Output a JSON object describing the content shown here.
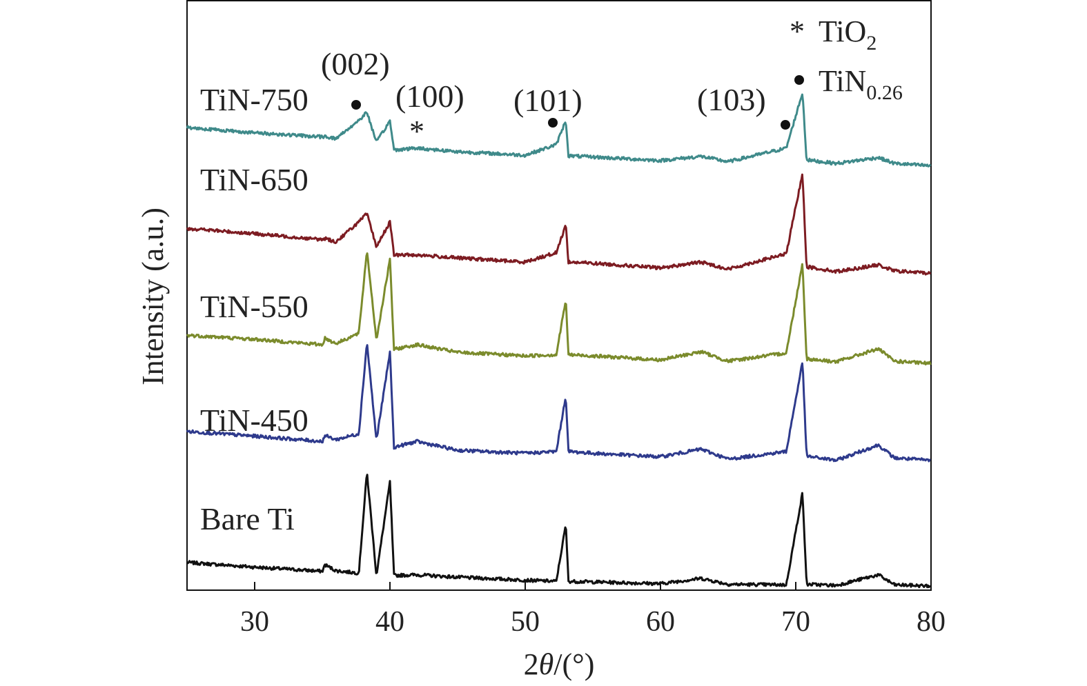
{
  "chart_data": {
    "type": "line",
    "title": "",
    "xlabel_prefix": "2",
    "xlabel_var": "θ",
    "xlabel_suffix": "/(°)",
    "ylabel": "Intensity (a.u.)",
    "xlim": [
      25,
      80
    ],
    "xticks": [
      30,
      40,
      50,
      60,
      70,
      80
    ],
    "x_values": [
      25,
      30,
      35,
      35.2,
      36,
      37.7,
      38.3,
      39.0,
      40.0,
      40.3,
      42.0,
      45,
      50,
      52.3,
      53.0,
      53.2,
      55,
      60,
      63.0,
      65,
      69.3,
      70.5,
      70.8,
      73,
      76.1,
      77.3,
      80
    ],
    "series": [
      {
        "name": "Bare Ti",
        "color": "#111111",
        "values": [
          4.7,
          3.9,
          3.2,
          4.3,
          3.3,
          2.9,
          20.0,
          2.5,
          18.3,
          2.5,
          2.6,
          2.2,
          1.7,
          1.5,
          11.1,
          1.5,
          1.4,
          1.1,
          2.0,
          1.0,
          0.9,
          16.5,
          1.0,
          0.8,
          2.6,
          0.9,
          0.7
        ]
      },
      {
        "name": "TiN-450",
        "color": "#2e3a8c",
        "values": [
          26.9,
          26.1,
          25.2,
          26.2,
          25.5,
          26.5,
          42.0,
          25.4,
          40.3,
          24.2,
          25.2,
          23.7,
          23.2,
          23.5,
          32.9,
          23.5,
          23.2,
          22.6,
          23.9,
          22.2,
          23.5,
          38.7,
          22.7,
          22.0,
          24.6,
          22.4,
          22.0
        ]
      },
      {
        "name": "TiN-550",
        "color": "#7b8b2c",
        "values": [
          43.2,
          42.5,
          41.6,
          42.7,
          41.8,
          43.5,
          57.6,
          42.4,
          56.0,
          40.8,
          41.6,
          40.3,
          39.7,
          39.9,
          49.2,
          39.9,
          39.7,
          39.0,
          40.4,
          38.8,
          40.2,
          55.4,
          39.2,
          38.7,
          40.9,
          38.8,
          38.4
        ]
      },
      {
        "name": "TiN-650",
        "color": "#7d1c22",
        "values": [
          61.3,
          60.4,
          59.4,
          59.6,
          59.0,
          62.4,
          63.8,
          58.2,
          62.4,
          56.8,
          56.8,
          56.3,
          55.6,
          57.2,
          61.9,
          55.6,
          55.4,
          54.6,
          55.6,
          54.4,
          57.0,
          70.6,
          54.8,
          54.0,
          55.1,
          54.1,
          53.7
        ]
      },
      {
        "name": "TiN-750",
        "color": "#3f8a8a",
        "values": [
          78.4,
          77.5,
          76.8,
          76.9,
          76.5,
          79.6,
          81.0,
          75.9,
          79.5,
          74.6,
          74.9,
          74.3,
          73.7,
          75.5,
          79.6,
          73.6,
          73.4,
          72.8,
          73.5,
          72.6,
          74.9,
          84.3,
          72.9,
          72.3,
          73.3,
          72.3,
          71.9
        ]
      }
    ],
    "annotations": {
      "hkl": [
        "(002)",
        "(100)",
        "(101)",
        "(103)"
      ],
      "star_mark": "*"
    },
    "legend": [
      {
        "symbol": "*",
        "label": "TiO",
        "subscript": "2"
      },
      {
        "symbol": "●",
        "label": "TiN",
        "subscript": "0.26"
      }
    ]
  }
}
